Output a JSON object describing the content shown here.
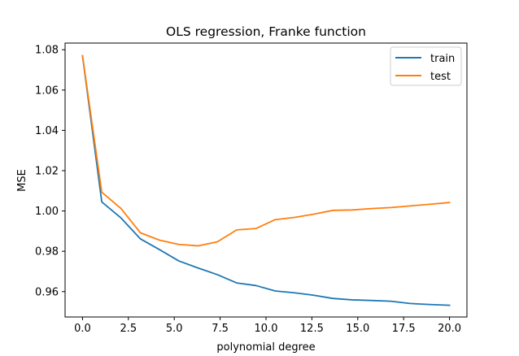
{
  "chart_data": {
    "type": "line",
    "title": "OLS regression, Franke function",
    "xlabel": "polynomial degree",
    "ylabel": "MSE",
    "xlim": [
      -0.95,
      20.95
    ],
    "ylim": [
      0.9474,
      1.0833
    ],
    "xticks": [
      0.0,
      2.5,
      5.0,
      7.5,
      10.0,
      12.5,
      15.0,
      17.5,
      20.0
    ],
    "xtick_labels": [
      "0.0",
      "2.5",
      "5.0",
      "7.5",
      "10.0",
      "12.5",
      "15.0",
      "17.5",
      "20.0"
    ],
    "yticks": [
      0.96,
      0.98,
      1.0,
      1.02,
      1.04,
      1.06,
      1.08
    ],
    "ytick_labels": [
      "0.96",
      "0.98",
      "1.00",
      "1.02",
      "1.04",
      "1.06",
      "1.08"
    ],
    "grid": false,
    "legend_position": "top-right",
    "x": [
      0.0,
      1.05,
      2.1,
      3.15,
      4.2,
      5.25,
      6.3,
      7.35,
      8.4,
      9.45,
      10.5,
      11.55,
      12.6,
      13.65,
      14.7,
      15.75,
      16.8,
      17.85,
      18.9,
      20.0
    ],
    "series": [
      {
        "name": "train",
        "color": "#1f77b4",
        "values": [
          1.077,
          1.0045,
          0.9965,
          0.9862,
          0.9808,
          0.9752,
          0.9717,
          0.9684,
          0.9643,
          0.963,
          0.9603,
          0.9594,
          0.9582,
          0.9566,
          0.9559,
          0.9556,
          0.9552,
          0.9541,
          0.9536,
          0.9532
        ]
      },
      {
        "name": "test",
        "color": "#ff7f0e",
        "values": [
          1.077,
          1.0093,
          1.0012,
          0.9892,
          0.9855,
          0.9834,
          0.9827,
          0.9847,
          0.9906,
          0.9913,
          0.9957,
          0.9968,
          0.9984,
          1.0003,
          1.0005,
          1.0012,
          1.0017,
          1.0025,
          1.0033,
          1.0042
        ]
      }
    ]
  }
}
